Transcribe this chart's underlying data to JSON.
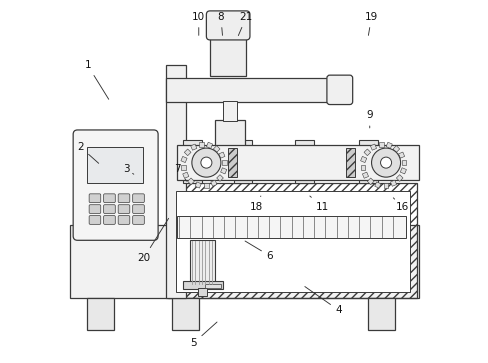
{
  "background_color": "#ffffff",
  "line_color": "#3a3a3a",
  "fig_width": 4.89,
  "fig_height": 3.63,
  "dpi": 100,
  "labels": {
    "1": [
      0.07,
      0.82,
      0.13,
      0.72
    ],
    "2": [
      0.05,
      0.595,
      0.105,
      0.545
    ],
    "3": [
      0.175,
      0.535,
      0.195,
      0.52
    ],
    "4": [
      0.76,
      0.145,
      0.66,
      0.215
    ],
    "5": [
      0.365,
      0.055,
      0.43,
      0.12
    ],
    "6": [
      0.57,
      0.295,
      0.495,
      0.34
    ],
    "7": [
      0.315,
      0.535,
      0.345,
      0.495
    ],
    "8": [
      0.435,
      0.955,
      0.44,
      0.895
    ],
    "9": [
      0.845,
      0.685,
      0.845,
      0.64
    ],
    "10": [
      0.375,
      0.955,
      0.375,
      0.895
    ],
    "11": [
      0.715,
      0.435,
      0.68,
      0.46
    ],
    "16": [
      0.935,
      0.435,
      0.91,
      0.455
    ],
    "18": [
      0.535,
      0.435,
      0.545,
      0.46
    ],
    "19": [
      0.85,
      0.955,
      0.84,
      0.895
    ],
    "20": [
      0.225,
      0.29,
      0.295,
      0.405
    ],
    "21": [
      0.505,
      0.955,
      0.48,
      0.895
    ]
  }
}
